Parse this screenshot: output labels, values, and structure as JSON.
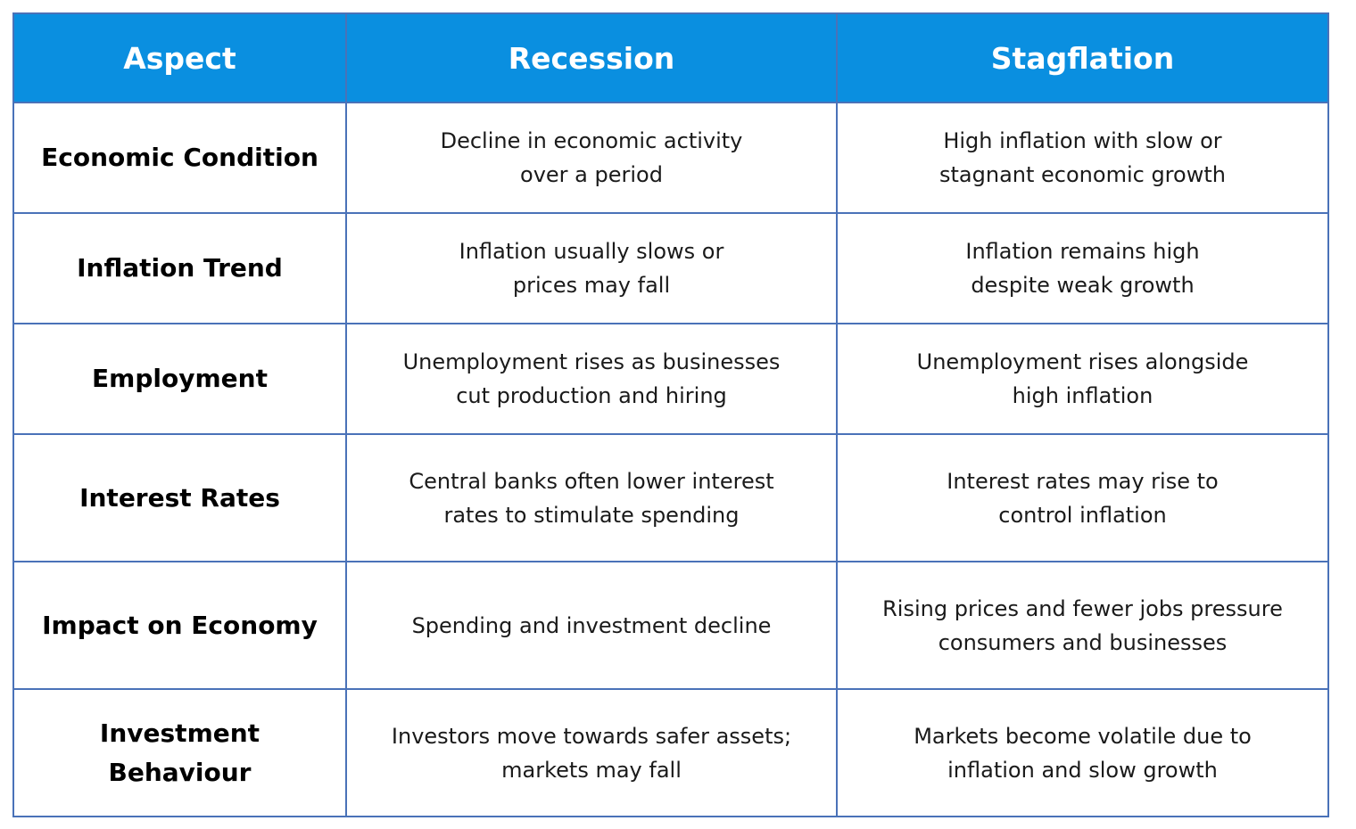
{
  "table": {
    "header": [
      "Aspect",
      "Recession",
      "Stagflation"
    ],
    "rows": [
      [
        [
          "Economic Condition"
        ],
        [
          "Decline in economic activity",
          "over a period"
        ],
        [
          "High inflation with slow or",
          "stagnant economic growth"
        ]
      ],
      [
        [
          "Inflation Trend"
        ],
        [
          "Inflation usually slows or",
          "prices may fall"
        ],
        [
          "Inflation remains high",
          "despite weak growth"
        ]
      ],
      [
        [
          "Employment"
        ],
        [
          "Unemployment rises as businesses",
          "cut production and hiring"
        ],
        [
          "Unemployment rises alongside",
          "high inflation"
        ]
      ],
      [
        [
          "Interest Rates"
        ],
        [
          "Central banks often lower interest",
          "rates to stimulate spending"
        ],
        [
          "Interest rates may rise to",
          "control inflation"
        ]
      ],
      [
        [
          "Impact on Economy"
        ],
        [
          "Spending and investment decline"
        ],
        [
          "Rising prices and fewer jobs pressure",
          "consumers and businesses"
        ]
      ],
      [
        [
          "Investment",
          "Behaviour"
        ],
        [
          "Investors move towards safer assets;",
          "markets may fall"
        ],
        [
          "Markets become volatile due to",
          "inflation and slow growth"
        ]
      ]
    ]
  }
}
